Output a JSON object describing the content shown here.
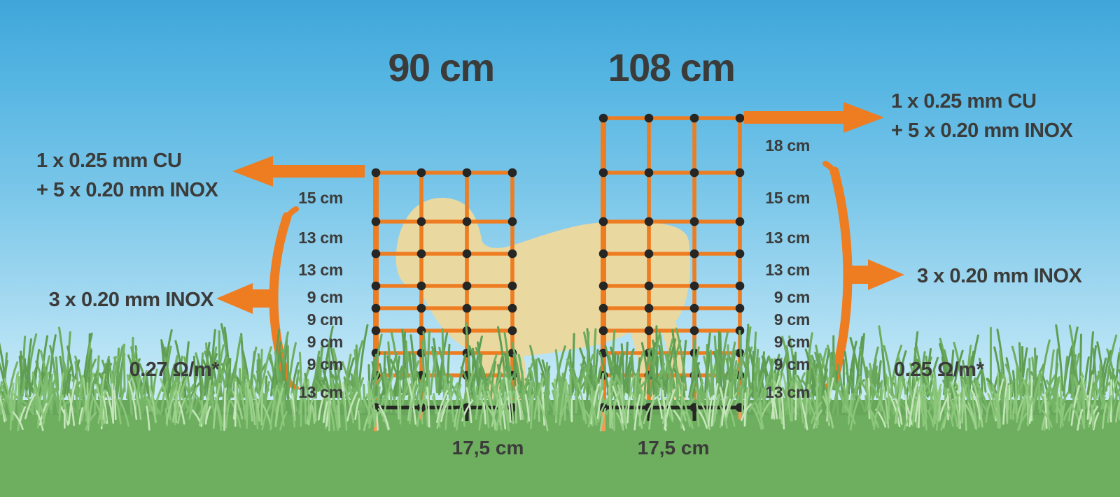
{
  "nets": [
    {
      "title": "90 cm",
      "gap_labels": [
        "15 cm",
        "13 cm",
        "13 cm",
        "9 cm",
        "9 cm",
        "9 cm",
        "9 cm",
        "13 cm"
      ],
      "post_spacing_label": "17,5 cm"
    },
    {
      "title": "108 cm",
      "gap_labels": [
        "18 cm",
        "15 cm",
        "13 cm",
        "13 cm",
        "9 cm",
        "9 cm",
        "9 cm",
        "9 cm",
        "13 cm"
      ],
      "post_spacing_label": "17,5 cm"
    }
  ],
  "wire_annotations": {
    "left_top": {
      "line1": "1 x 0.25 mm CU",
      "line2": "+ 5 x 0.20 mm INOX"
    },
    "right_top": {
      "line1": "1 x 0.25 mm CU",
      "line2": "+ 5 x 0.20 mm INOX"
    },
    "left_mid": "3 x 0.20 mm INOX",
    "right_mid": "3 x 0.20 mm INOX"
  },
  "resistance": {
    "left": "0.27 Ω/m*",
    "right": "0.25 Ω/m*"
  },
  "colors": {
    "orange": "#ee7c20",
    "orange_light": "#f29b53",
    "wire_dark": "#262624",
    "text": "#3b3b3a",
    "sheep": "#e9d8a0",
    "grass": "#6dae5f"
  }
}
